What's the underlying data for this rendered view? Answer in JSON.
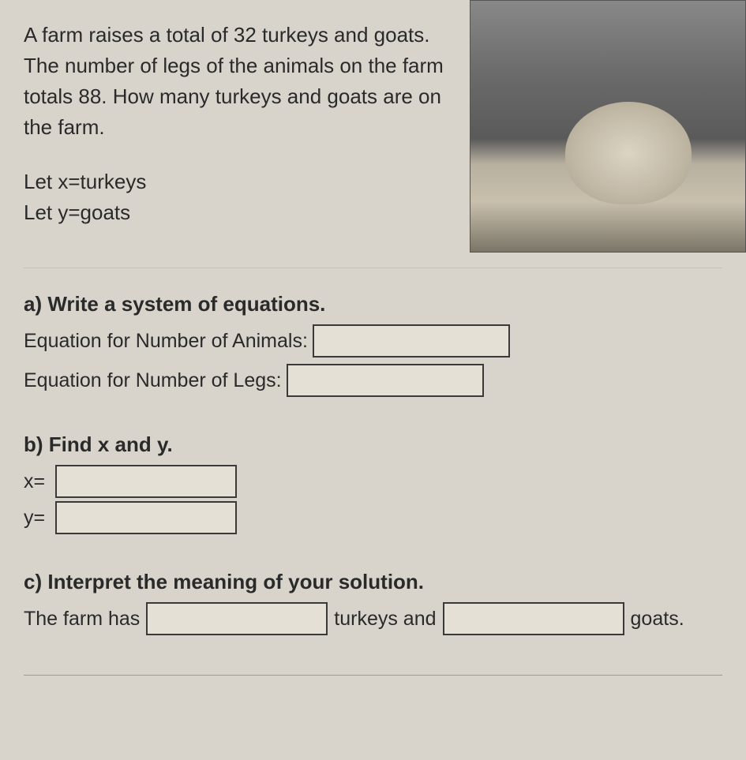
{
  "problem": {
    "text": "A farm raises a total of 32 turkeys and goats. The number of legs of the animals on the farm totals 88. How many turkeys and goats are on the farm.",
    "let_x": "Let x=turkeys",
    "let_y": "Let y=goats"
  },
  "partA": {
    "title": "a) Write a system of equations.",
    "animals_label": "Equation for Number of Animals:",
    "legs_label": "Equation for Number of Legs:",
    "animals_value": "",
    "legs_value": ""
  },
  "partB": {
    "title": "b) Find x and y.",
    "x_label": "x=",
    "y_label": "y=",
    "x_value": "",
    "y_value": ""
  },
  "partC": {
    "title": "c) Interpret the meaning of your solution.",
    "prefix": "The farm has",
    "mid": "turkeys and",
    "suffix": "goats.",
    "turkeys_value": "",
    "goats_value": ""
  },
  "style": {
    "background_color": "#d8d4cc",
    "text_color": "#2a2a2a",
    "box_border_color": "#3a3a3a",
    "box_bg_color": "#e4e0d6",
    "font_family": "Arial",
    "body_fontsize": 26,
    "input_box_height": 42,
    "input_box_border_width": 2
  }
}
